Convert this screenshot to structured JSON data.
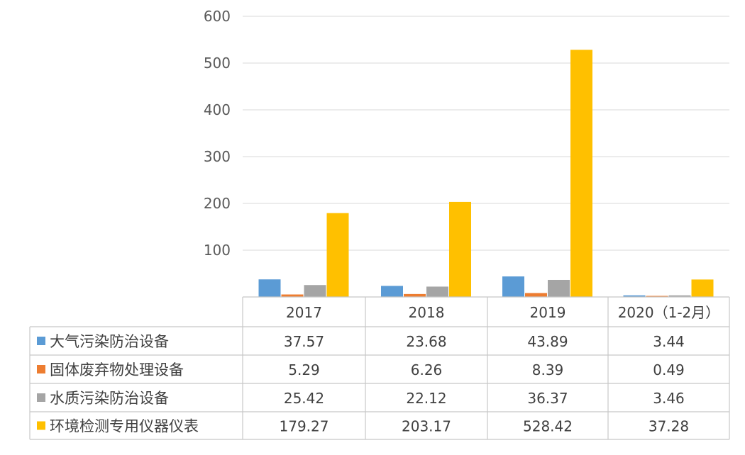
{
  "chart_data": {
    "type": "bar",
    "title": "",
    "xlabel": "",
    "ylabel": "",
    "ylim": [
      0,
      600
    ],
    "yticks": [
      100,
      200,
      300,
      400,
      500,
      600
    ],
    "grid": true,
    "legend": "data-table",
    "categories": [
      "2017",
      "2018",
      "2019",
      "2020（1-2月）"
    ],
    "series": [
      {
        "name": "大气污染防治设备",
        "color": "#5b9bd5",
        "values": [
          37.57,
          23.68,
          43.89,
          3.44
        ]
      },
      {
        "name": "固体废弃物处理设备",
        "color": "#ed7d31",
        "values": [
          5.29,
          6.26,
          8.39,
          0.49
        ]
      },
      {
        "name": "水质污染防治设备",
        "color": "#a5a5a5",
        "values": [
          25.42,
          22.12,
          36.37,
          3.46
        ]
      },
      {
        "name": "环境检测专用仪器仪表",
        "color": "#ffc000",
        "values": [
          179.27,
          203.17,
          528.42,
          37.28
        ]
      }
    ],
    "table_values": [
      [
        "37.57",
        "23.68",
        "43.89",
        "3.44"
      ],
      [
        "5.29",
        "6.26",
        "8.39",
        "0.49"
      ],
      [
        "25.42",
        "22.12",
        "36.37",
        "3.46"
      ],
      [
        "179.27",
        "203.17",
        "528.42",
        "37.28"
      ]
    ]
  }
}
